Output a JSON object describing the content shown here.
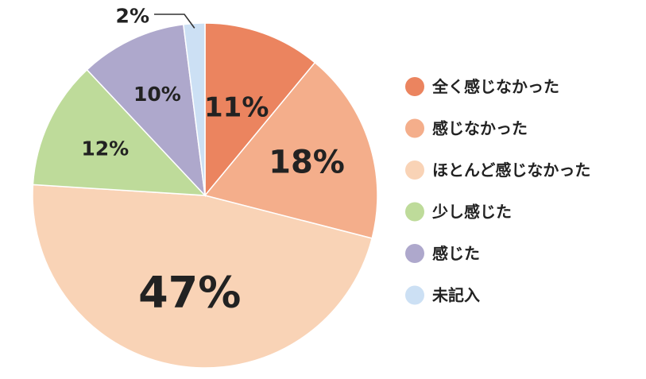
{
  "chart_data": {
    "type": "pie",
    "title": "",
    "slices": [
      {
        "label": "全く感じなかった",
        "value": 11,
        "value_label": "11%",
        "color": "#EB845F"
      },
      {
        "label": "感じなかった",
        "value": 18,
        "value_label": "18%",
        "color": "#F4AE8B"
      },
      {
        "label": "ほとんど感じなかった",
        "value": 47,
        "value_label": "47%",
        "color": "#F9D3B6"
      },
      {
        "label": "少し感じた",
        "value": 12,
        "value_label": "12%",
        "color": "#BEDB9A"
      },
      {
        "label": "感じた",
        "value": 10,
        "value_label": "10%",
        "color": "#AEA8CC"
      },
      {
        "label": "未記入",
        "value": 2,
        "value_label": "2%",
        "color": "#CCE0F4"
      }
    ],
    "start_angle": "12 o'clock",
    "direction": "clockwise",
    "legend_position": "right"
  }
}
